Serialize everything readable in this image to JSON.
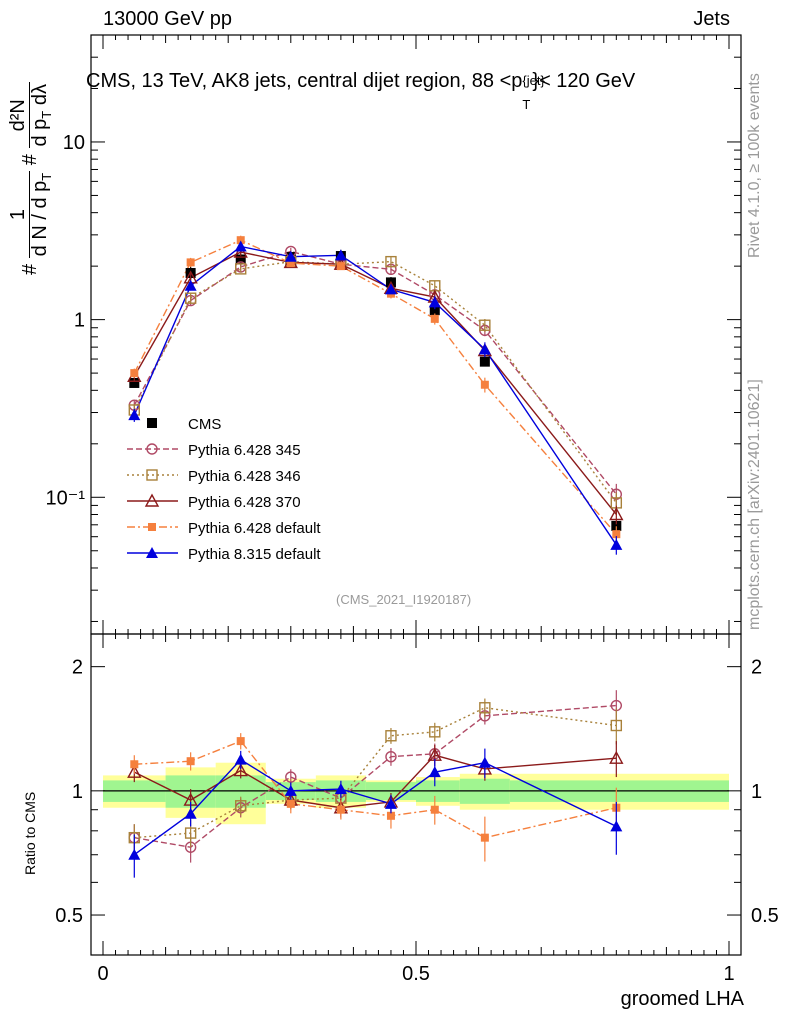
{
  "header": {
    "left": "13000 GeV pp",
    "right": "Jets"
  },
  "side": {
    "rivet": "Rivet 4.1.0, ≥ 100k events",
    "mcplots": "mcplots.cern.ch [arXiv:2401.10621]"
  },
  "chart_data": {
    "type": "line",
    "title_parts": {
      "prefix": "CMS, 13 TeV, AK8 jets, central dijet region, 88 <p",
      "sub": "T",
      "sup": "{jet}",
      "suffix": "}< 120 GeV"
    },
    "watermark": "(CMS_2021_I1920187)",
    "ylabel_main": "1/N dN/dp_T d²N/dp_T dλ",
    "ylabel_parts": {
      "hash": "#",
      "one": "1",
      "dN": "d N / d p",
      "T": "T",
      "d2N": "d²N",
      "dp": "d p",
      "dl": "dλ"
    },
    "ylabel_ratio": "Ratio to CMS",
    "xlabel": "groomed LHA",
    "x_ticks": [
      "0",
      "0.5",
      "1"
    ],
    "y_ticks_main": {
      "10": "10",
      "1": "1",
      "0.1": "10⁻¹"
    },
    "y_ticks_ratio": [
      "2",
      "1",
      "0.5"
    ],
    "xlim": [
      0,
      1
    ],
    "ylim_main": [
      0.017,
      40
    ],
    "ylim_ratio": [
      0.4,
      2.4
    ],
    "x": [
      0.05,
      0.14,
      0.22,
      0.3,
      0.38,
      0.46,
      0.53,
      0.61,
      0.82
    ],
    "x_edges": [
      0.0,
      0.1,
      0.18,
      0.26,
      0.34,
      0.42,
      0.5,
      0.57,
      0.65,
      1.0
    ],
    "band_inner": [
      0.06,
      0.09,
      0.09,
      0.05,
      0.06,
      0.05,
      0.06,
      0.07,
      0.06
    ],
    "band_outer": [
      0.09,
      0.14,
      0.17,
      0.07,
      0.09,
      0.06,
      0.08,
      0.1,
      0.1
    ],
    "series": [
      {
        "name": "CMS",
        "color": "#000000",
        "marker": "square-filled",
        "dash": "none",
        "values": [
          0.44,
          1.83,
          2.18,
          2.25,
          2.28,
          1.62,
          1.13,
          0.58,
          0.069
        ],
        "ratio": [
          1,
          1,
          1,
          1,
          1,
          1,
          1,
          1,
          1
        ],
        "err": [
          0.03,
          0.07,
          0.07,
          0.07,
          0.07,
          0.06,
          0.06,
          0.04,
          0.005
        ]
      },
      {
        "name": "Pythia 6.428 345",
        "color": "#b04a66",
        "marker": "circle-open",
        "dash": "6,3",
        "values": [
          0.33,
          1.28,
          1.98,
          2.42,
          2.05,
          1.92,
          1.38,
          0.87,
          0.104
        ],
        "ratio": [
          0.77,
          0.73,
          0.91,
          1.08,
          0.96,
          1.21,
          1.23,
          1.52,
          1.61
        ],
        "err": [
          0.05,
          0.05,
          0.04,
          0.04,
          0.04,
          0.05,
          0.06,
          0.06,
          0.12
        ]
      },
      {
        "name": "Pythia 6.428 346",
        "color": "#a8813a",
        "marker": "square-open",
        "dash": "2,3",
        "values": [
          0.31,
          1.32,
          1.93,
          2.12,
          2.05,
          2.12,
          1.55,
          0.93,
          0.093
        ],
        "ratio": [
          0.77,
          0.79,
          0.92,
          0.95,
          0.96,
          1.36,
          1.39,
          1.59,
          1.44
        ],
        "err": [
          0.05,
          0.05,
          0.04,
          0.04,
          0.04,
          0.05,
          0.06,
          0.07,
          0.12
        ]
      },
      {
        "name": "Pythia 6.428 370",
        "color": "#8b1a1a",
        "marker": "triangle-open",
        "dash": "none",
        "values": [
          0.48,
          1.72,
          2.4,
          2.1,
          2.05,
          1.5,
          1.34,
          0.67,
          0.08
        ],
        "ratio": [
          1.11,
          0.95,
          1.12,
          0.95,
          0.91,
          0.94,
          1.22,
          1.13,
          1.2
        ],
        "err": [
          0.05,
          0.05,
          0.04,
          0.04,
          0.04,
          0.04,
          0.06,
          0.06,
          0.1
        ]
      },
      {
        "name": "Pythia 6.428 default",
        "color": "#f5803e",
        "marker": "square-small",
        "dash": "8,3,2,3",
        "values": [
          0.5,
          2.1,
          2.8,
          2.08,
          2.0,
          1.4,
          1.01,
          0.43,
          0.062
        ],
        "ratio": [
          1.16,
          1.18,
          1.32,
          0.93,
          0.9,
          0.87,
          0.9,
          0.77,
          0.91
        ],
        "err": [
          0.05,
          0.05,
          0.05,
          0.04,
          0.04,
          0.05,
          0.06,
          0.08,
          0.09
        ]
      },
      {
        "name": "Pythia 8.315 default",
        "color": "#0000dd",
        "marker": "triangle-filled",
        "dash": "none",
        "values": [
          0.29,
          1.55,
          2.58,
          2.26,
          2.3,
          1.48,
          1.25,
          0.68,
          0.054
        ],
        "ratio": [
          0.7,
          0.88,
          1.19,
          1.0,
          1.01,
          0.93,
          1.11,
          1.17,
          0.82
        ],
        "err": [
          0.07,
          0.05,
          0.05,
          0.04,
          0.04,
          0.04,
          0.07,
          0.08,
          0.1
        ]
      }
    ]
  }
}
